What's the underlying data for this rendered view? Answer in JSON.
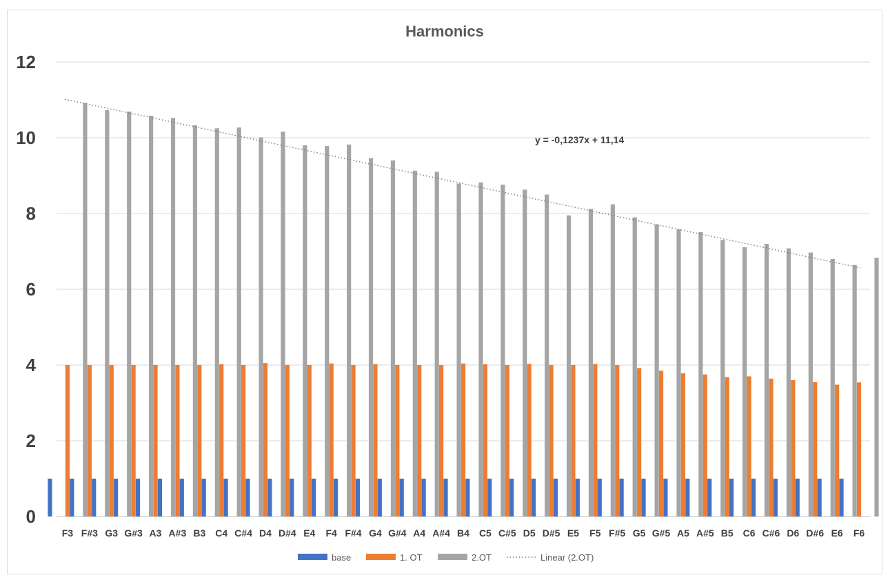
{
  "chart_data": {
    "type": "bar",
    "title": "Harmonics",
    "xlabel": "",
    "ylabel": "",
    "ylim": [
      0,
      12
    ],
    "yticks": [
      0,
      2,
      4,
      6,
      8,
      10,
      12
    ],
    "grid": true,
    "legend_position": "bottom",
    "categories": [
      "F3",
      "F#3",
      "G3",
      "G#3",
      "A3",
      "A#3",
      "B3",
      "C4",
      "C#4",
      "D4",
      "D#4",
      "E4",
      "F4",
      "F#4",
      "G4",
      "G#4",
      "A4",
      "A#4",
      "B4",
      "C5",
      "C#5",
      "D5",
      "D#5",
      "E5",
      "F5",
      "F#5",
      "G5",
      "G#5",
      "A5",
      "A#5",
      "B5",
      "C6",
      "C#6",
      "D6",
      "D#6",
      "E6",
      "F6"
    ],
    "series": [
      {
        "name": "base",
        "color": "#4472c4",
        "values": [
          1,
          1,
          1,
          1,
          1,
          1,
          1,
          1,
          1,
          1,
          1,
          1,
          1,
          1,
          1,
          1,
          1,
          1,
          1,
          1,
          1,
          1,
          1,
          1,
          1,
          1,
          1,
          1,
          1,
          1,
          1,
          1,
          1,
          1,
          1,
          1,
          1
        ]
      },
      {
        "name": "1. OT",
        "color": "#ed7d31",
        "values": [
          4.0,
          4.0,
          4.0,
          4.0,
          4.0,
          4.0,
          4.0,
          4.02,
          4.0,
          4.05,
          4.0,
          4.0,
          4.04,
          4.0,
          4.02,
          4.0,
          4.0,
          4.0,
          4.04,
          4.02,
          4.0,
          4.03,
          4.0,
          4.0,
          4.03,
          4.0,
          3.92,
          3.85,
          3.78,
          3.75,
          3.68,
          3.7,
          3.64,
          3.6,
          3.55,
          3.48,
          3.54
        ]
      },
      {
        "name": "2.OT",
        "color": "#a5a5a5",
        "values": [
          10.92,
          10.73,
          10.69,
          10.58,
          10.52,
          10.33,
          10.25,
          10.27,
          10.01,
          10.16,
          9.8,
          9.78,
          9.82,
          9.46,
          9.4,
          9.13,
          9.1,
          8.79,
          8.82,
          8.76,
          8.63,
          8.5,
          7.95,
          8.12,
          8.24,
          7.9,
          7.71,
          7.58,
          7.51,
          7.3,
          7.11,
          7.2,
          7.08,
          6.97,
          6.8,
          6.64,
          6.83
        ]
      }
    ],
    "trendline": {
      "name": "Linear (2.OT)",
      "series": "2.OT",
      "type": "linear",
      "equation": "y = -0,1237x + 11,14",
      "slope": -0.1237,
      "intercept": 11.14,
      "color": "#a5a5a5"
    }
  }
}
